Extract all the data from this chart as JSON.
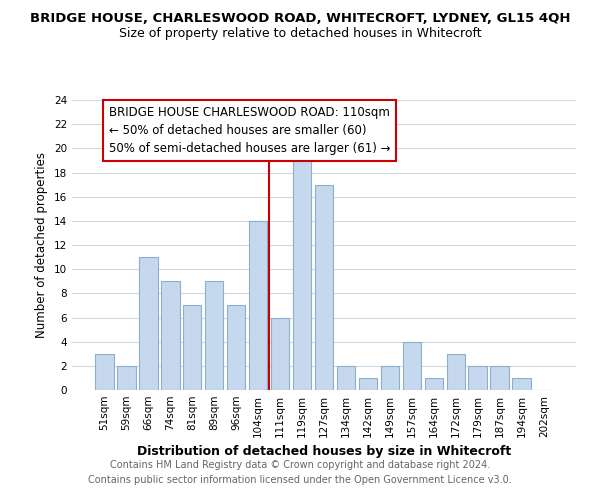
{
  "title": "BRIDGE HOUSE, CHARLESWOOD ROAD, WHITECROFT, LYDNEY, GL15 4QH",
  "subtitle": "Size of property relative to detached houses in Whitecroft",
  "xlabel": "Distribution of detached houses by size in Whitecroft",
  "ylabel": "Number of detached properties",
  "bar_labels": [
    "51sqm",
    "59sqm",
    "66sqm",
    "74sqm",
    "81sqm",
    "89sqm",
    "96sqm",
    "104sqm",
    "111sqm",
    "119sqm",
    "127sqm",
    "134sqm",
    "142sqm",
    "149sqm",
    "157sqm",
    "164sqm",
    "172sqm",
    "179sqm",
    "187sqm",
    "194sqm",
    "202sqm"
  ],
  "bar_values": [
    3,
    2,
    11,
    9,
    7,
    9,
    7,
    14,
    6,
    19,
    17,
    2,
    1,
    2,
    4,
    1,
    3,
    2,
    2,
    1,
    0
  ],
  "bar_color": "#c5d8ed",
  "bar_edge_color": "#8ab0cc",
  "grid_color": "#d0d8e0",
  "vline_color": "#cc0000",
  "ylim": [
    0,
    24
  ],
  "yticks": [
    0,
    2,
    4,
    6,
    8,
    10,
    12,
    14,
    16,
    18,
    20,
    22,
    24
  ],
  "annotation_box_text_line1": "BRIDGE HOUSE CHARLESWOOD ROAD: 110sqm",
  "annotation_box_text_line2": "← 50% of detached houses are smaller (60)",
  "annotation_box_text_line3": "50% of semi-detached houses are larger (61) →",
  "annotation_box_color": "#ffffff",
  "annotation_box_edge_color": "#cc0000",
  "footer_line1": "Contains HM Land Registry data © Crown copyright and database right 2024.",
  "footer_line2": "Contains public sector information licensed under the Open Government Licence v3.0.",
  "bg_color": "#ffffff",
  "title_fontsize": 9.5,
  "subtitle_fontsize": 9,
  "xlabel_fontsize": 9,
  "ylabel_fontsize": 8.5,
  "footer_fontsize": 7,
  "tick_fontsize": 7.5,
  "annot_fontsize": 8.5
}
